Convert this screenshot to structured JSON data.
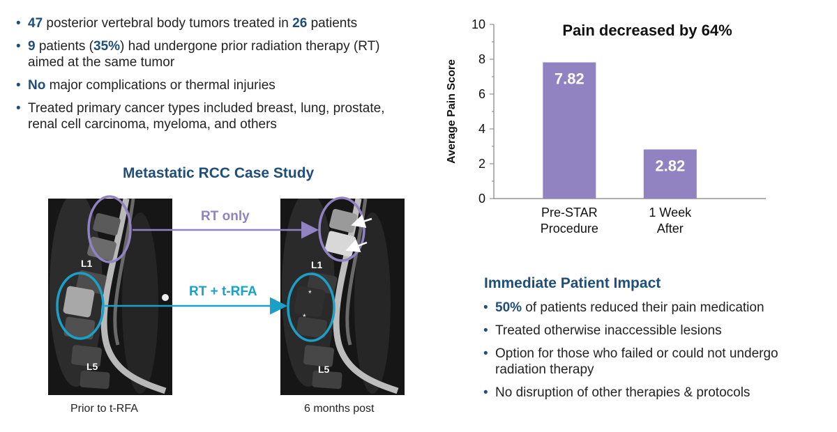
{
  "left_bullets": [
    {
      "parts": [
        {
          "t": "47",
          "em": true
        },
        {
          "t": " posterior vertebral body tumors treated in "
        },
        {
          "t": "26",
          "em": true
        },
        {
          "t": " patients"
        }
      ]
    },
    {
      "parts": [
        {
          "t": "9",
          "em": true
        },
        {
          "t": " patients ("
        },
        {
          "t": "35%",
          "em": true
        },
        {
          "t": ") had undergone prior radiation therapy (RT) aimed at the same tumor"
        }
      ]
    },
    {
      "parts": [
        {
          "t": "No",
          "em": true
        },
        {
          "t": " major complications or thermal injuries"
        }
      ]
    },
    {
      "parts": [
        {
          "t": "Treated primary cancer types included breast, lung, prostate, renal cell carcinoma, myeloma, and others"
        }
      ]
    }
  ],
  "case_study": {
    "title": "Metastatic RCC Case Study",
    "arrow_top_label": "RT only",
    "arrow_bottom_label": "RT + t-RFA",
    "left_caption": "Prior to t-RFA",
    "right_caption": "6 months post",
    "vertebra_labels": {
      "l1": "L1",
      "l5": "L5"
    },
    "colors": {
      "rt_only": "#9182c2",
      "rt_rfa": "#1ba1c7"
    }
  },
  "impact": {
    "title": "Immediate Patient Impact",
    "bullets": [
      {
        "parts": [
          {
            "t": "50%",
            "em": true
          },
          {
            "t": " of patients reduced their pain medication"
          }
        ]
      },
      {
        "parts": [
          {
            "t": "Treated otherwise inaccessible lesions"
          }
        ]
      },
      {
        "parts": [
          {
            "t": "Option for those who failed or could not undergo radiation therapy"
          }
        ]
      },
      {
        "parts": [
          {
            "t": "No disruption of other therapies & protocols"
          }
        ]
      }
    ]
  },
  "chart_data": {
    "type": "bar",
    "title": "Pain decreased by 64%",
    "ylabel": "Average Pain Score",
    "xlabel": "",
    "categories": [
      [
        "Pre-STAR",
        "Procedure"
      ],
      [
        "1 Week",
        "After"
      ]
    ],
    "values": [
      7.82,
      2.82
    ],
    "data_labels": [
      "7.82",
      "2.82"
    ],
    "ylim": [
      0,
      10
    ],
    "yticks": [
      0,
      2,
      4,
      6,
      8,
      10
    ],
    "grid": false,
    "bar_color": "#9182c2"
  }
}
